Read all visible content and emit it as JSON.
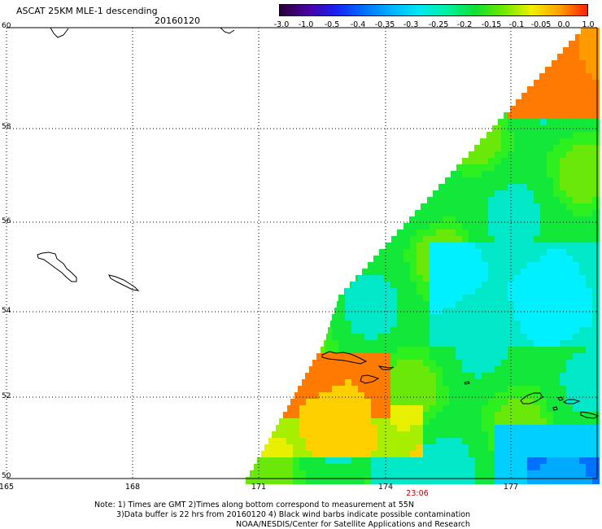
{
  "header": {
    "title": "ASCAT 25KM MLE-1 descending",
    "date": "20160120"
  },
  "colorbar": {
    "colors": [
      "#2a0038",
      "#4a00a0",
      "#1a20f0",
      "#0070ff",
      "#00b4ff",
      "#00e8f0",
      "#00f0a0",
      "#10e030",
      "#70e800",
      "#f0f000",
      "#ffa000",
      "#ff2000"
    ],
    "labels": [
      "-3.0",
      "-1.0",
      "-0.5",
      "-0.4",
      "-0.35",
      "-0.3",
      "-0.25",
      "-0.2",
      "-0.15",
      "-0.1",
      "-0.05",
      "0.0",
      "1.0"
    ]
  },
  "map": {
    "lat_labels": [
      "60",
      "58",
      "56",
      "54",
      "52",
      "50"
    ],
    "lon_labels": [
      "165",
      "168",
      "171",
      "174",
      "177"
    ],
    "time_label": "23:06"
  },
  "notes": {
    "line1": "Note: 1) Times are GMT 2)Times along bottom correspond to measurement at 55N",
    "line2": "3)Data buffer is 22 hrs from 20160120 4) Black wind barbs indicate possible contamination",
    "line3": "NOAA/NESDIS/Center for Satellite Applications and Research"
  }
}
